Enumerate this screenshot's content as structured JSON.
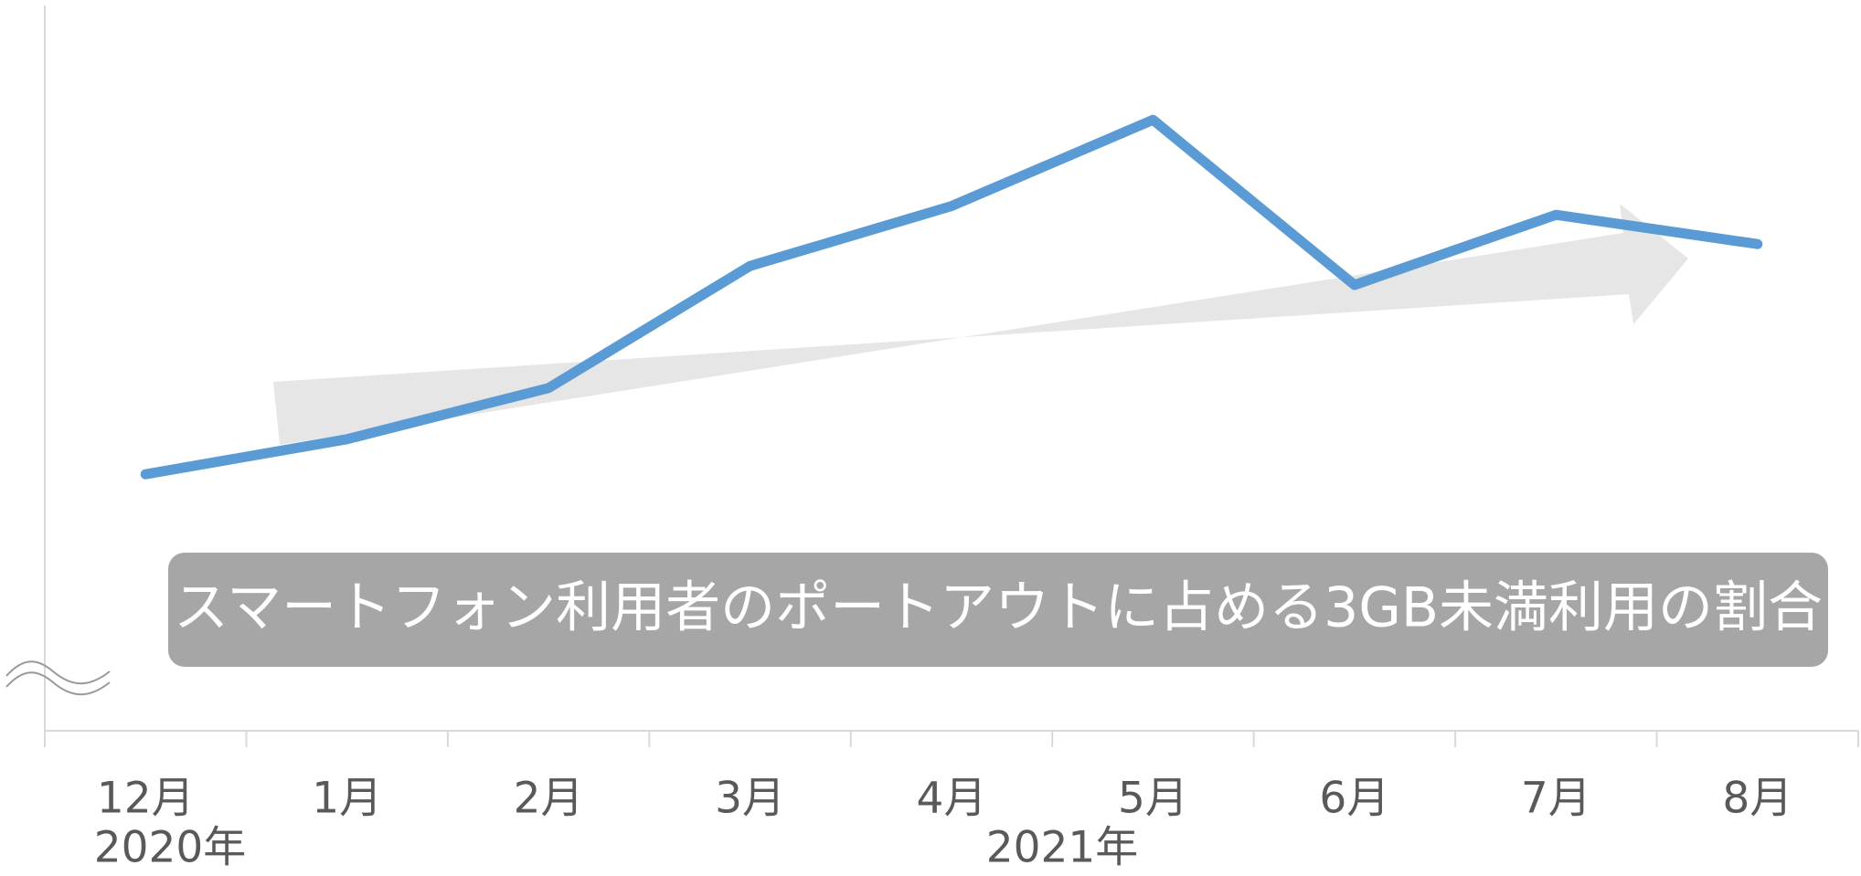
{
  "chart_data": {
    "type": "line",
    "categories": [
      "12月",
      "1月",
      "2月",
      "3月",
      "4月",
      "5月",
      "6月",
      "7月",
      "8月"
    ],
    "year_labels": [
      "2020年",
      "2021年"
    ],
    "annotation": "スマートフォン利用者のポートアウトに占める3GB未満利用の割合",
    "series": [
      {
        "color": "#5b9bd5",
        "values": [
          35.1,
          39.9,
          46.9,
          63.6,
          71.8,
          83.6,
          61.0,
          70.6,
          66.6
        ]
      }
    ],
    "ylim": [
      0,
      100
    ]
  }
}
